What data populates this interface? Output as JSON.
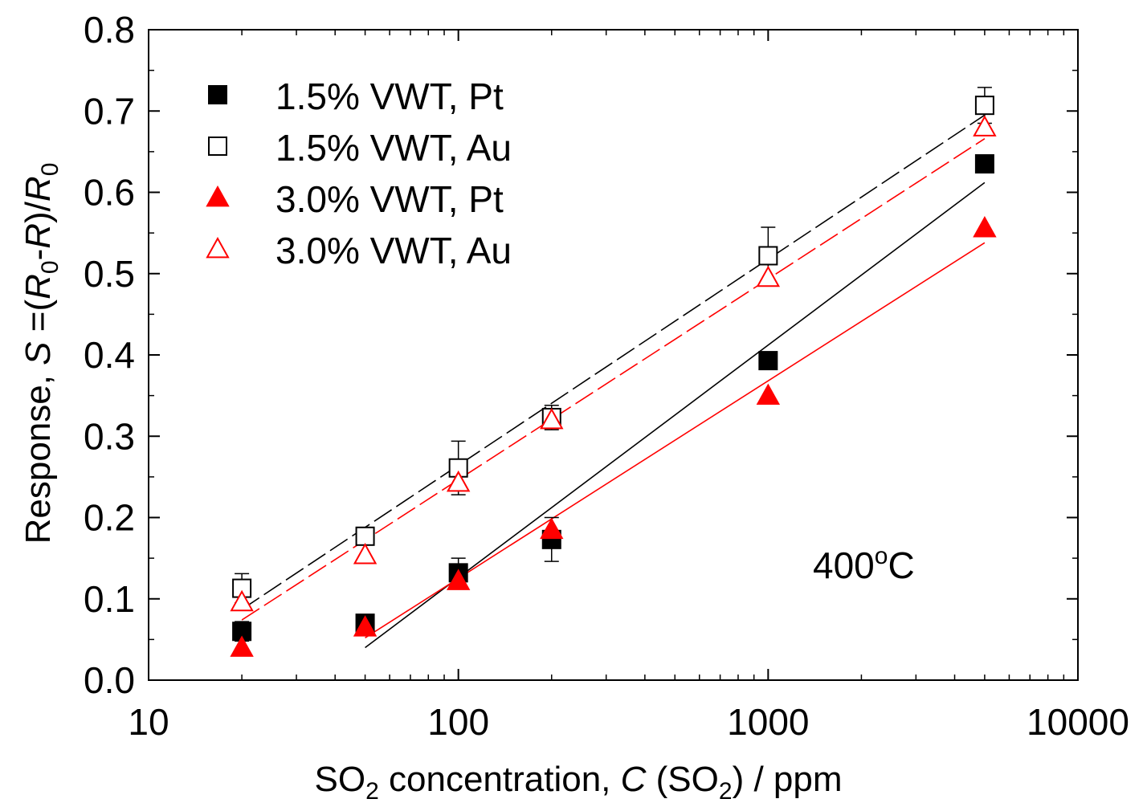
{
  "chart_data": {
    "type": "scatter",
    "title": "",
    "xscale": "log",
    "xlim": [
      10,
      10000
    ],
    "ylim": [
      0.0,
      0.8
    ],
    "xticks": [
      10,
      100,
      1000,
      10000
    ],
    "xtick_labels": [
      "10",
      "100",
      "1000",
      "10000"
    ],
    "yticks": [
      0.0,
      0.1,
      0.2,
      0.3,
      0.4,
      0.5,
      0.6,
      0.7,
      0.8
    ],
    "ytick_labels": [
      "0.0",
      "0.1",
      "0.2",
      "0.3",
      "0.4",
      "0.5",
      "0.6",
      "0.7",
      "0.8"
    ],
    "xlabel": {
      "p1": "SO",
      "sub1": "2",
      "p2": " concentration, ",
      "italic": "C",
      "p3": " (SO",
      "sub2": "2",
      "p4": ") / ppm"
    },
    "ylabel": {
      "p1": "Response, ",
      "s": "S",
      "p2": " =(",
      "r0a": "R",
      "sub_a": "0",
      "p3": "-",
      "r": "R",
      "p4": ")/",
      "r0b": "R",
      "sub_b": "0"
    },
    "annotation": {
      "value": "400",
      "sup": "o",
      "unit": "C"
    },
    "legend_position": "top-left",
    "series": [
      {
        "name": "1.5% VWT, Pt",
        "marker": "square-filled",
        "color": "#000000",
        "x": [
          20,
          50,
          100,
          200,
          1000,
          5000
        ],
        "y": [
          0.06,
          0.07,
          0.132,
          0.173,
          0.393,
          0.635
        ],
        "err": [
          0.012,
          0.008,
          0.018,
          0.027,
          0.0,
          0.0
        ],
        "fit": {
          "x": [
            50,
            5000
          ],
          "y": [
            0.04,
            0.612
          ],
          "style": "solid"
        }
      },
      {
        "name": "1.5% VWT, Au",
        "marker": "square-open",
        "color": "#000000",
        "x": [
          20,
          50,
          100,
          200,
          1000,
          5000
        ],
        "y": [
          0.113,
          0.177,
          0.261,
          0.323,
          0.522,
          0.707
        ],
        "err": [
          0.018,
          0.0,
          0.033,
          0.015,
          0.035,
          0.022
        ],
        "fit": {
          "x": [
            20,
            5000
          ],
          "y": [
            0.087,
            0.695
          ],
          "style": "dashed"
        }
      },
      {
        "name": "3.0% VWT, Pt",
        "marker": "triangle-filled",
        "color": "#ff0000",
        "x": [
          20,
          50,
          100,
          200,
          1000,
          5000
        ],
        "y": [
          0.04,
          0.065,
          0.122,
          0.185,
          0.35,
          0.556
        ],
        "err": [
          0.0,
          0.0,
          0.0,
          0.0,
          0.0,
          0.0
        ],
        "fit": {
          "x": [
            50,
            5000
          ],
          "y": [
            0.052,
            0.538
          ],
          "style": "solid"
        }
      },
      {
        "name": "3.0% VWT, Au",
        "marker": "triangle-open",
        "color": "#ff0000",
        "x": [
          20,
          50,
          100,
          200,
          1000,
          5000
        ],
        "y": [
          0.096,
          0.154,
          0.243,
          0.32,
          0.495,
          0.68
        ],
        "err": [
          0.0,
          0.0,
          0.0,
          0.0,
          0.0,
          0.0
        ],
        "fit": {
          "x": [
            20,
            5000
          ],
          "y": [
            0.074,
            0.666
          ],
          "style": "dashed"
        }
      }
    ]
  }
}
